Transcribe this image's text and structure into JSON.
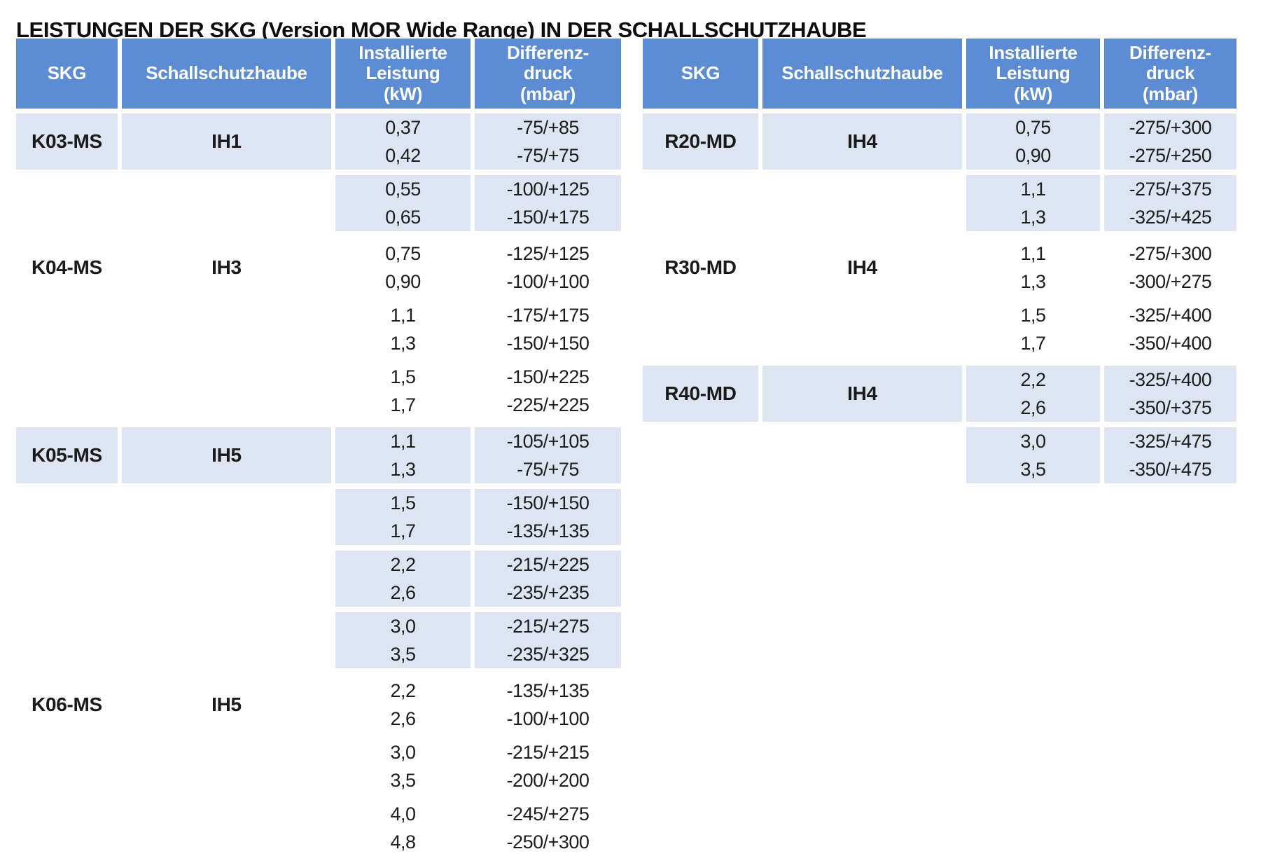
{
  "title": "LEISTUNGEN DER SKG (Version MOR Wide Range) IN DER SCHALLSCHUTZHAUBE",
  "colors": {
    "header_bg": "#5b8cd4",
    "row_shade_bg": "#dce5f1",
    "header_text": "#ffffff",
    "body_text": "#1d1d1b"
  },
  "columns": [
    {
      "id": "skg",
      "lines": [
        "SKG"
      ]
    },
    {
      "id": "schallschutzhaube",
      "lines": [
        "Schallschutzhaube"
      ]
    },
    {
      "id": "installierte-leistung",
      "lines": [
        "Installierte",
        "Leistung",
        "(kW)"
      ]
    },
    {
      "id": "differenzdruck",
      "lines": [
        "Differenz-",
        "druck",
        "(mbar)"
      ]
    }
  ],
  "tables": [
    {
      "id": "left",
      "groups": [
        {
          "skg": "K03-MS",
          "haube": "IH1",
          "shaded": true,
          "subgroups": [
            {
              "rows": [
                {
                  "kw": "0,37",
                  "mbar": "-75/+85"
                },
                {
                  "kw": "0,42",
                  "mbar": "-75/+75"
                }
              ]
            },
            {
              "rows": [
                {
                  "kw": "0,55",
                  "mbar": "-100/+125"
                },
                {
                  "kw": "0,65",
                  "mbar": "-150/+175"
                }
              ]
            }
          ]
        },
        {
          "skg": "K04-MS",
          "haube": "IH3",
          "shaded": false,
          "subgroups": [
            {
              "rows": [
                {
                  "kw": "0,75",
                  "mbar": "-125/+125"
                },
                {
                  "kw": "0,90",
                  "mbar": "-100/+100"
                }
              ]
            },
            {
              "rows": [
                {
                  "kw": "1,1",
                  "mbar": "-175/+175"
                },
                {
                  "kw": "1,3",
                  "mbar": "-150/+150"
                }
              ]
            },
            {
              "rows": [
                {
                  "kw": "1,5",
                  "mbar": "-150/+225"
                },
                {
                  "kw": "1,7",
                  "mbar": "-225/+225"
                }
              ]
            }
          ]
        },
        {
          "skg": "K05-MS",
          "haube": "IH5",
          "shaded": true,
          "subgroups": [
            {
              "rows": [
                {
                  "kw": "1,1",
                  "mbar": "-105/+105"
                },
                {
                  "kw": "1,3",
                  "mbar": "-75/+75"
                }
              ]
            },
            {
              "rows": [
                {
                  "kw": "1,5",
                  "mbar": "-150/+150"
                },
                {
                  "kw": "1,7",
                  "mbar": "-135/+135"
                }
              ]
            },
            {
              "rows": [
                {
                  "kw": "2,2",
                  "mbar": "-215/+225"
                },
                {
                  "kw": "2,6",
                  "mbar": "-235/+235"
                }
              ]
            },
            {
              "rows": [
                {
                  "kw": "3,0",
                  "mbar": "-215/+275"
                },
                {
                  "kw": "3,5",
                  "mbar": "-235/+325"
                }
              ]
            }
          ]
        },
        {
          "skg": "K06-MS",
          "haube": "IH5",
          "shaded": false,
          "subgroups": [
            {
              "rows": [
                {
                  "kw": "2,2",
                  "mbar": "-135/+135"
                },
                {
                  "kw": "2,6",
                  "mbar": "-100/+100"
                }
              ]
            },
            {
              "rows": [
                {
                  "kw": "3,0",
                  "mbar": "-215/+215"
                },
                {
                  "kw": "3,5",
                  "mbar": "-200/+200"
                }
              ]
            },
            {
              "rows": [
                {
                  "kw": "4,0",
                  "mbar": "-245/+275"
                },
                {
                  "kw": "4,8",
                  "mbar": "-250/+300"
                }
              ]
            }
          ]
        }
      ]
    },
    {
      "id": "right",
      "groups": [
        {
          "skg": "R20-MD",
          "haube": "IH4",
          "shaded": true,
          "subgroups": [
            {
              "rows": [
                {
                  "kw": "0,75",
                  "mbar": "-275/+300"
                },
                {
                  "kw": "0,90",
                  "mbar": "-275/+250"
                }
              ]
            },
            {
              "rows": [
                {
                  "kw": "1,1",
                  "mbar": "-275/+375"
                },
                {
                  "kw": "1,3",
                  "mbar": "-325/+425"
                }
              ]
            }
          ]
        },
        {
          "skg": "R30-MD",
          "haube": "IH4",
          "shaded": false,
          "subgroups": [
            {
              "rows": [
                {
                  "kw": "1,1",
                  "mbar": "-275/+300"
                },
                {
                  "kw": "1,3",
                  "mbar": "-300/+275"
                }
              ]
            },
            {
              "rows": [
                {
                  "kw": "1,5",
                  "mbar": "-325/+400"
                },
                {
                  "kw": "1,7",
                  "mbar": "-350/+400"
                }
              ]
            }
          ]
        },
        {
          "skg": "R40-MD",
          "haube": "IH4",
          "shaded": true,
          "subgroups": [
            {
              "rows": [
                {
                  "kw": "2,2",
                  "mbar": "-325/+400"
                },
                {
                  "kw": "2,6",
                  "mbar": "-350/+375"
                }
              ]
            },
            {
              "rows": [
                {
                  "kw": "3,0",
                  "mbar": "-325/+475"
                },
                {
                  "kw": "3,5",
                  "mbar": "-350/+475"
                }
              ]
            }
          ]
        }
      ]
    }
  ]
}
